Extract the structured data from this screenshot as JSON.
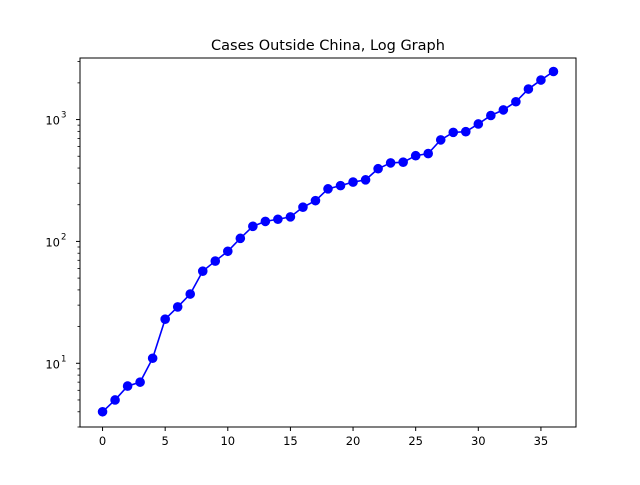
{
  "chart_data": {
    "type": "line",
    "title": "Cases Outside China, Log Graph",
    "xlabel": "",
    "ylabel": "",
    "xlim": [
      -1.8,
      37.8
    ],
    "ylim": [
      3.0,
      3200
    ],
    "yscale": "log",
    "x_ticks": [
      0,
      5,
      10,
      15,
      20,
      25,
      30,
      35
    ],
    "x_tick_labels": [
      "0",
      "5",
      "10",
      "15",
      "20",
      "25",
      "30",
      "35"
    ],
    "y_ticks": [
      {
        "value": 10,
        "base": "10",
        "exp": "1"
      },
      {
        "value": 100,
        "base": "10",
        "exp": "2"
      },
      {
        "value": 1000,
        "base": "10",
        "exp": "3"
      }
    ],
    "grid": false,
    "series": [
      {
        "color": "#0000ff",
        "marker": "circle",
        "x": [
          0,
          1,
          2,
          3,
          4,
          5,
          6,
          7,
          8,
          9,
          10,
          11,
          12,
          13,
          14,
          15,
          16,
          17,
          18,
          19,
          20,
          21,
          22,
          23,
          24,
          25,
          26,
          27,
          28,
          29,
          30,
          31,
          32,
          33,
          34,
          35,
          36
        ],
        "y": [
          4,
          5,
          6.5,
          7,
          11,
          23,
          29,
          37,
          57,
          69,
          83,
          106,
          133,
          146,
          152,
          159,
          191,
          216,
          270,
          287,
          307,
          320,
          395,
          441,
          447,
          505,
          526,
          681,
          785,
          795,
          920,
          1080,
          1200,
          1400,
          1780,
          2110,
          2480
        ]
      }
    ]
  }
}
